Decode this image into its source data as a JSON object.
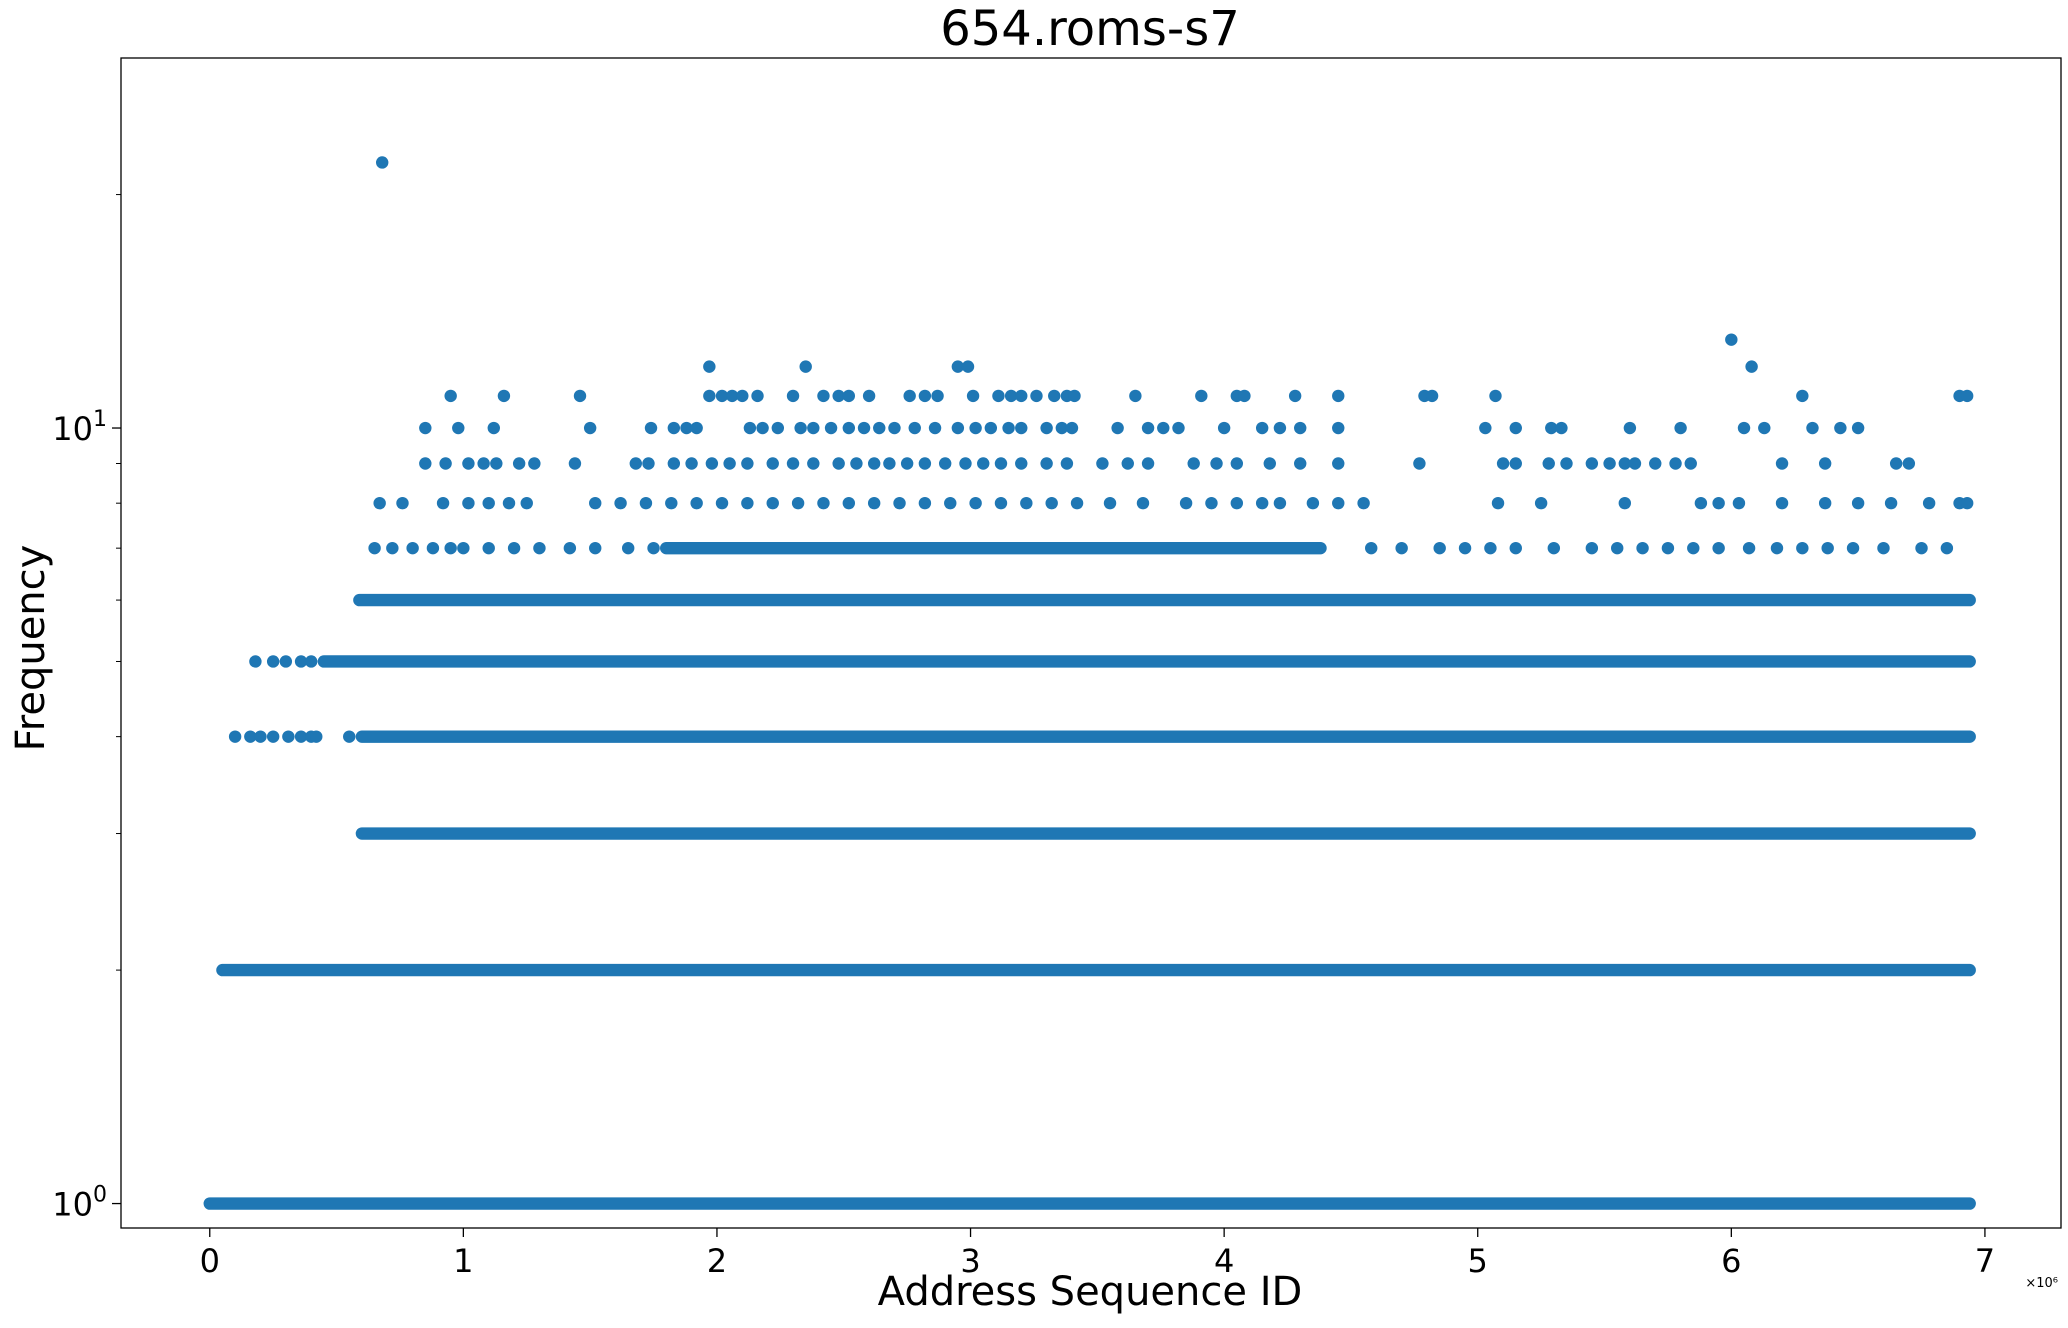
{
  "chart_data": {
    "type": "scatter",
    "title": "654.roms-s7",
    "xlabel": "Address Sequence ID",
    "ylabel": "Frequency",
    "x_offset_label": "×10⁶",
    "xlim": [
      -0.35,
      7.3
    ],
    "ylim": [
      0.93,
      30
    ],
    "y_scale": "log",
    "grid": false,
    "marker_color": "#1f77b4",
    "x_ticks": [
      {
        "value": 0,
        "label": "0"
      },
      {
        "value": 1,
        "label": "1"
      },
      {
        "value": 2,
        "label": "2"
      },
      {
        "value": 3,
        "label": "3"
      },
      {
        "value": 4,
        "label": "4"
      },
      {
        "value": 5,
        "label": "5"
      },
      {
        "value": 6,
        "label": "6"
      },
      {
        "value": 7,
        "label": "7"
      }
    ],
    "y_ticks": [
      {
        "value": 1,
        "base": "10",
        "exp": "0"
      },
      {
        "value": 10,
        "base": "10",
        "exp": "1"
      }
    ],
    "y_minor_ticks": [
      2,
      3,
      4,
      5,
      6,
      7,
      8,
      9,
      20
    ],
    "bands": [
      {
        "y": 1,
        "x_start": 0.0,
        "x_end": 6.94
      },
      {
        "y": 2,
        "x_start": 0.05,
        "x_end": 6.94
      },
      {
        "y": 3,
        "x_start": 0.6,
        "x_end": 6.94
      },
      {
        "y": 4,
        "x_start": 0.6,
        "x_end": 6.94
      },
      {
        "y": 5,
        "x_start": 0.45,
        "x_end": 6.94
      },
      {
        "y": 6,
        "x_start": 0.59,
        "x_end": 6.94
      },
      {
        "y": 7,
        "x_start": 1.8,
        "x_end": 4.38
      }
    ],
    "points": [
      {
        "x": 0.68,
        "y": 22
      },
      {
        "x": 6.0,
        "y": 13
      },
      {
        "x": 6.08,
        "y": 12
      },
      {
        "x": 1.97,
        "y": 12
      },
      {
        "x": 2.35,
        "y": 12
      },
      {
        "x": 2.95,
        "y": 12
      },
      {
        "x": 2.99,
        "y": 12
      },
      {
        "x": 0.95,
        "y": 11
      },
      {
        "x": 1.16,
        "y": 11
      },
      {
        "x": 1.46,
        "y": 11
      },
      {
        "x": 1.97,
        "y": 11
      },
      {
        "x": 2.02,
        "y": 11
      },
      {
        "x": 2.06,
        "y": 11
      },
      {
        "x": 2.1,
        "y": 11
      },
      {
        "x": 2.16,
        "y": 11
      },
      {
        "x": 2.3,
        "y": 11
      },
      {
        "x": 2.42,
        "y": 11
      },
      {
        "x": 2.48,
        "y": 11
      },
      {
        "x": 2.52,
        "y": 11
      },
      {
        "x": 2.6,
        "y": 11
      },
      {
        "x": 2.76,
        "y": 11
      },
      {
        "x": 2.82,
        "y": 11
      },
      {
        "x": 2.87,
        "y": 11
      },
      {
        "x": 3.01,
        "y": 11
      },
      {
        "x": 3.11,
        "y": 11
      },
      {
        "x": 3.16,
        "y": 11
      },
      {
        "x": 3.2,
        "y": 11
      },
      {
        "x": 3.26,
        "y": 11
      },
      {
        "x": 3.33,
        "y": 11
      },
      {
        "x": 3.38,
        "y": 11
      },
      {
        "x": 3.41,
        "y": 11
      },
      {
        "x": 3.65,
        "y": 11
      },
      {
        "x": 3.91,
        "y": 11
      },
      {
        "x": 4.05,
        "y": 11
      },
      {
        "x": 4.08,
        "y": 11
      },
      {
        "x": 4.28,
        "y": 11
      },
      {
        "x": 4.45,
        "y": 11
      },
      {
        "x": 4.79,
        "y": 11
      },
      {
        "x": 4.82,
        "y": 11
      },
      {
        "x": 5.07,
        "y": 11
      },
      {
        "x": 6.28,
        "y": 11
      },
      {
        "x": 6.9,
        "y": 11
      },
      {
        "x": 6.93,
        "y": 11
      },
      {
        "x": 0.85,
        "y": 10
      },
      {
        "x": 0.98,
        "y": 10
      },
      {
        "x": 1.12,
        "y": 10
      },
      {
        "x": 1.5,
        "y": 10
      },
      {
        "x": 1.74,
        "y": 10
      },
      {
        "x": 1.83,
        "y": 10
      },
      {
        "x": 1.88,
        "y": 10
      },
      {
        "x": 1.92,
        "y": 10
      },
      {
        "x": 2.13,
        "y": 10
      },
      {
        "x": 2.18,
        "y": 10
      },
      {
        "x": 2.24,
        "y": 10
      },
      {
        "x": 2.33,
        "y": 10
      },
      {
        "x": 2.38,
        "y": 10
      },
      {
        "x": 2.45,
        "y": 10
      },
      {
        "x": 2.52,
        "y": 10
      },
      {
        "x": 2.58,
        "y": 10
      },
      {
        "x": 2.64,
        "y": 10
      },
      {
        "x": 2.7,
        "y": 10
      },
      {
        "x": 2.78,
        "y": 10
      },
      {
        "x": 2.86,
        "y": 10
      },
      {
        "x": 2.95,
        "y": 10
      },
      {
        "x": 3.02,
        "y": 10
      },
      {
        "x": 3.08,
        "y": 10
      },
      {
        "x": 3.15,
        "y": 10
      },
      {
        "x": 3.2,
        "y": 10
      },
      {
        "x": 3.3,
        "y": 10
      },
      {
        "x": 3.36,
        "y": 10
      },
      {
        "x": 3.4,
        "y": 10
      },
      {
        "x": 3.58,
        "y": 10
      },
      {
        "x": 3.7,
        "y": 10
      },
      {
        "x": 3.76,
        "y": 10
      },
      {
        "x": 3.82,
        "y": 10
      },
      {
        "x": 4.0,
        "y": 10
      },
      {
        "x": 4.15,
        "y": 10
      },
      {
        "x": 4.22,
        "y": 10
      },
      {
        "x": 4.3,
        "y": 10
      },
      {
        "x": 4.45,
        "y": 10
      },
      {
        "x": 5.03,
        "y": 10
      },
      {
        "x": 5.15,
        "y": 10
      },
      {
        "x": 5.29,
        "y": 10
      },
      {
        "x": 5.33,
        "y": 10
      },
      {
        "x": 5.6,
        "y": 10
      },
      {
        "x": 5.8,
        "y": 10
      },
      {
        "x": 6.05,
        "y": 10
      },
      {
        "x": 6.13,
        "y": 10
      },
      {
        "x": 6.32,
        "y": 10
      },
      {
        "x": 6.43,
        "y": 10
      },
      {
        "x": 6.5,
        "y": 10
      },
      {
        "x": 0.85,
        "y": 9
      },
      {
        "x": 0.93,
        "y": 9
      },
      {
        "x": 1.02,
        "y": 9
      },
      {
        "x": 1.08,
        "y": 9
      },
      {
        "x": 1.13,
        "y": 9
      },
      {
        "x": 1.22,
        "y": 9
      },
      {
        "x": 1.28,
        "y": 9
      },
      {
        "x": 1.44,
        "y": 9
      },
      {
        "x": 1.68,
        "y": 9
      },
      {
        "x": 1.73,
        "y": 9
      },
      {
        "x": 1.83,
        "y": 9
      },
      {
        "x": 1.9,
        "y": 9
      },
      {
        "x": 1.98,
        "y": 9
      },
      {
        "x": 2.05,
        "y": 9
      },
      {
        "x": 2.12,
        "y": 9
      },
      {
        "x": 2.22,
        "y": 9
      },
      {
        "x": 2.3,
        "y": 9
      },
      {
        "x": 2.38,
        "y": 9
      },
      {
        "x": 2.48,
        "y": 9
      },
      {
        "x": 2.55,
        "y": 9
      },
      {
        "x": 2.62,
        "y": 9
      },
      {
        "x": 2.68,
        "y": 9
      },
      {
        "x": 2.75,
        "y": 9
      },
      {
        "x": 2.82,
        "y": 9
      },
      {
        "x": 2.9,
        "y": 9
      },
      {
        "x": 2.98,
        "y": 9
      },
      {
        "x": 3.05,
        "y": 9
      },
      {
        "x": 3.12,
        "y": 9
      },
      {
        "x": 3.2,
        "y": 9
      },
      {
        "x": 3.3,
        "y": 9
      },
      {
        "x": 3.38,
        "y": 9
      },
      {
        "x": 3.52,
        "y": 9
      },
      {
        "x": 3.62,
        "y": 9
      },
      {
        "x": 3.7,
        "y": 9
      },
      {
        "x": 3.88,
        "y": 9
      },
      {
        "x": 3.97,
        "y": 9
      },
      {
        "x": 4.05,
        "y": 9
      },
      {
        "x": 4.18,
        "y": 9
      },
      {
        "x": 4.3,
        "y": 9
      },
      {
        "x": 4.45,
        "y": 9
      },
      {
        "x": 4.77,
        "y": 9
      },
      {
        "x": 5.1,
        "y": 9
      },
      {
        "x": 5.15,
        "y": 9
      },
      {
        "x": 5.28,
        "y": 9
      },
      {
        "x": 5.35,
        "y": 9
      },
      {
        "x": 5.45,
        "y": 9
      },
      {
        "x": 5.52,
        "y": 9
      },
      {
        "x": 5.58,
        "y": 9
      },
      {
        "x": 5.62,
        "y": 9
      },
      {
        "x": 5.7,
        "y": 9
      },
      {
        "x": 5.78,
        "y": 9
      },
      {
        "x": 5.84,
        "y": 9
      },
      {
        "x": 6.2,
        "y": 9
      },
      {
        "x": 6.37,
        "y": 9
      },
      {
        "x": 6.65,
        "y": 9
      },
      {
        "x": 6.7,
        "y": 9
      },
      {
        "x": 0.67,
        "y": 8
      },
      {
        "x": 0.76,
        "y": 8
      },
      {
        "x": 0.92,
        "y": 8
      },
      {
        "x": 1.02,
        "y": 8
      },
      {
        "x": 1.1,
        "y": 8
      },
      {
        "x": 1.18,
        "y": 8
      },
      {
        "x": 1.25,
        "y": 8
      },
      {
        "x": 1.52,
        "y": 8
      },
      {
        "x": 1.62,
        "y": 8
      },
      {
        "x": 1.72,
        "y": 8
      },
      {
        "x": 1.82,
        "y": 8
      },
      {
        "x": 1.92,
        "y": 8
      },
      {
        "x": 2.02,
        "y": 8
      },
      {
        "x": 2.12,
        "y": 8
      },
      {
        "x": 2.22,
        "y": 8
      },
      {
        "x": 2.32,
        "y": 8
      },
      {
        "x": 2.42,
        "y": 8
      },
      {
        "x": 2.52,
        "y": 8
      },
      {
        "x": 2.62,
        "y": 8
      },
      {
        "x": 2.72,
        "y": 8
      },
      {
        "x": 2.82,
        "y": 8
      },
      {
        "x": 2.92,
        "y": 8
      },
      {
        "x": 3.02,
        "y": 8
      },
      {
        "x": 3.12,
        "y": 8
      },
      {
        "x": 3.22,
        "y": 8
      },
      {
        "x": 3.32,
        "y": 8
      },
      {
        "x": 3.42,
        "y": 8
      },
      {
        "x": 3.55,
        "y": 8
      },
      {
        "x": 3.68,
        "y": 8
      },
      {
        "x": 3.85,
        "y": 8
      },
      {
        "x": 3.95,
        "y": 8
      },
      {
        "x": 4.05,
        "y": 8
      },
      {
        "x": 4.15,
        "y": 8
      },
      {
        "x": 4.22,
        "y": 8
      },
      {
        "x": 4.35,
        "y": 8
      },
      {
        "x": 4.45,
        "y": 8
      },
      {
        "x": 4.55,
        "y": 8
      },
      {
        "x": 5.08,
        "y": 8
      },
      {
        "x": 5.25,
        "y": 8
      },
      {
        "x": 5.58,
        "y": 8
      },
      {
        "x": 5.88,
        "y": 8
      },
      {
        "x": 5.95,
        "y": 8
      },
      {
        "x": 6.03,
        "y": 8
      },
      {
        "x": 6.2,
        "y": 8
      },
      {
        "x": 6.37,
        "y": 8
      },
      {
        "x": 6.5,
        "y": 8
      },
      {
        "x": 6.63,
        "y": 8
      },
      {
        "x": 6.78,
        "y": 8
      },
      {
        "x": 6.9,
        "y": 8
      },
      {
        "x": 6.93,
        "y": 8
      },
      {
        "x": 0.65,
        "y": 7
      },
      {
        "x": 0.72,
        "y": 7
      },
      {
        "x": 0.8,
        "y": 7
      },
      {
        "x": 0.88,
        "y": 7
      },
      {
        "x": 0.95,
        "y": 7
      },
      {
        "x": 1.0,
        "y": 7
      },
      {
        "x": 1.1,
        "y": 7
      },
      {
        "x": 1.2,
        "y": 7
      },
      {
        "x": 1.3,
        "y": 7
      },
      {
        "x": 1.42,
        "y": 7
      },
      {
        "x": 1.52,
        "y": 7
      },
      {
        "x": 1.65,
        "y": 7
      },
      {
        "x": 1.75,
        "y": 7
      },
      {
        "x": 4.58,
        "y": 7
      },
      {
        "x": 4.7,
        "y": 7
      },
      {
        "x": 4.85,
        "y": 7
      },
      {
        "x": 4.95,
        "y": 7
      },
      {
        "x": 5.05,
        "y": 7
      },
      {
        "x": 5.15,
        "y": 7
      },
      {
        "x": 5.3,
        "y": 7
      },
      {
        "x": 5.45,
        "y": 7
      },
      {
        "x": 5.55,
        "y": 7
      },
      {
        "x": 5.65,
        "y": 7
      },
      {
        "x": 5.75,
        "y": 7
      },
      {
        "x": 5.85,
        "y": 7
      },
      {
        "x": 5.95,
        "y": 7
      },
      {
        "x": 6.07,
        "y": 7
      },
      {
        "x": 6.18,
        "y": 7
      },
      {
        "x": 6.28,
        "y": 7
      },
      {
        "x": 6.38,
        "y": 7
      },
      {
        "x": 6.48,
        "y": 7
      },
      {
        "x": 6.6,
        "y": 7
      },
      {
        "x": 6.75,
        "y": 7
      },
      {
        "x": 6.85,
        "y": 7
      },
      {
        "x": 0.18,
        "y": 5
      },
      {
        "x": 0.25,
        "y": 5
      },
      {
        "x": 0.3,
        "y": 5
      },
      {
        "x": 0.36,
        "y": 5
      },
      {
        "x": 0.4,
        "y": 5
      },
      {
        "x": 0.1,
        "y": 4
      },
      {
        "x": 0.16,
        "y": 4
      },
      {
        "x": 0.2,
        "y": 4
      },
      {
        "x": 0.25,
        "y": 4
      },
      {
        "x": 0.31,
        "y": 4
      },
      {
        "x": 0.36,
        "y": 4
      },
      {
        "x": 0.4,
        "y": 4
      },
      {
        "x": 0.42,
        "y": 4
      },
      {
        "x": 0.55,
        "y": 4
      }
    ]
  }
}
